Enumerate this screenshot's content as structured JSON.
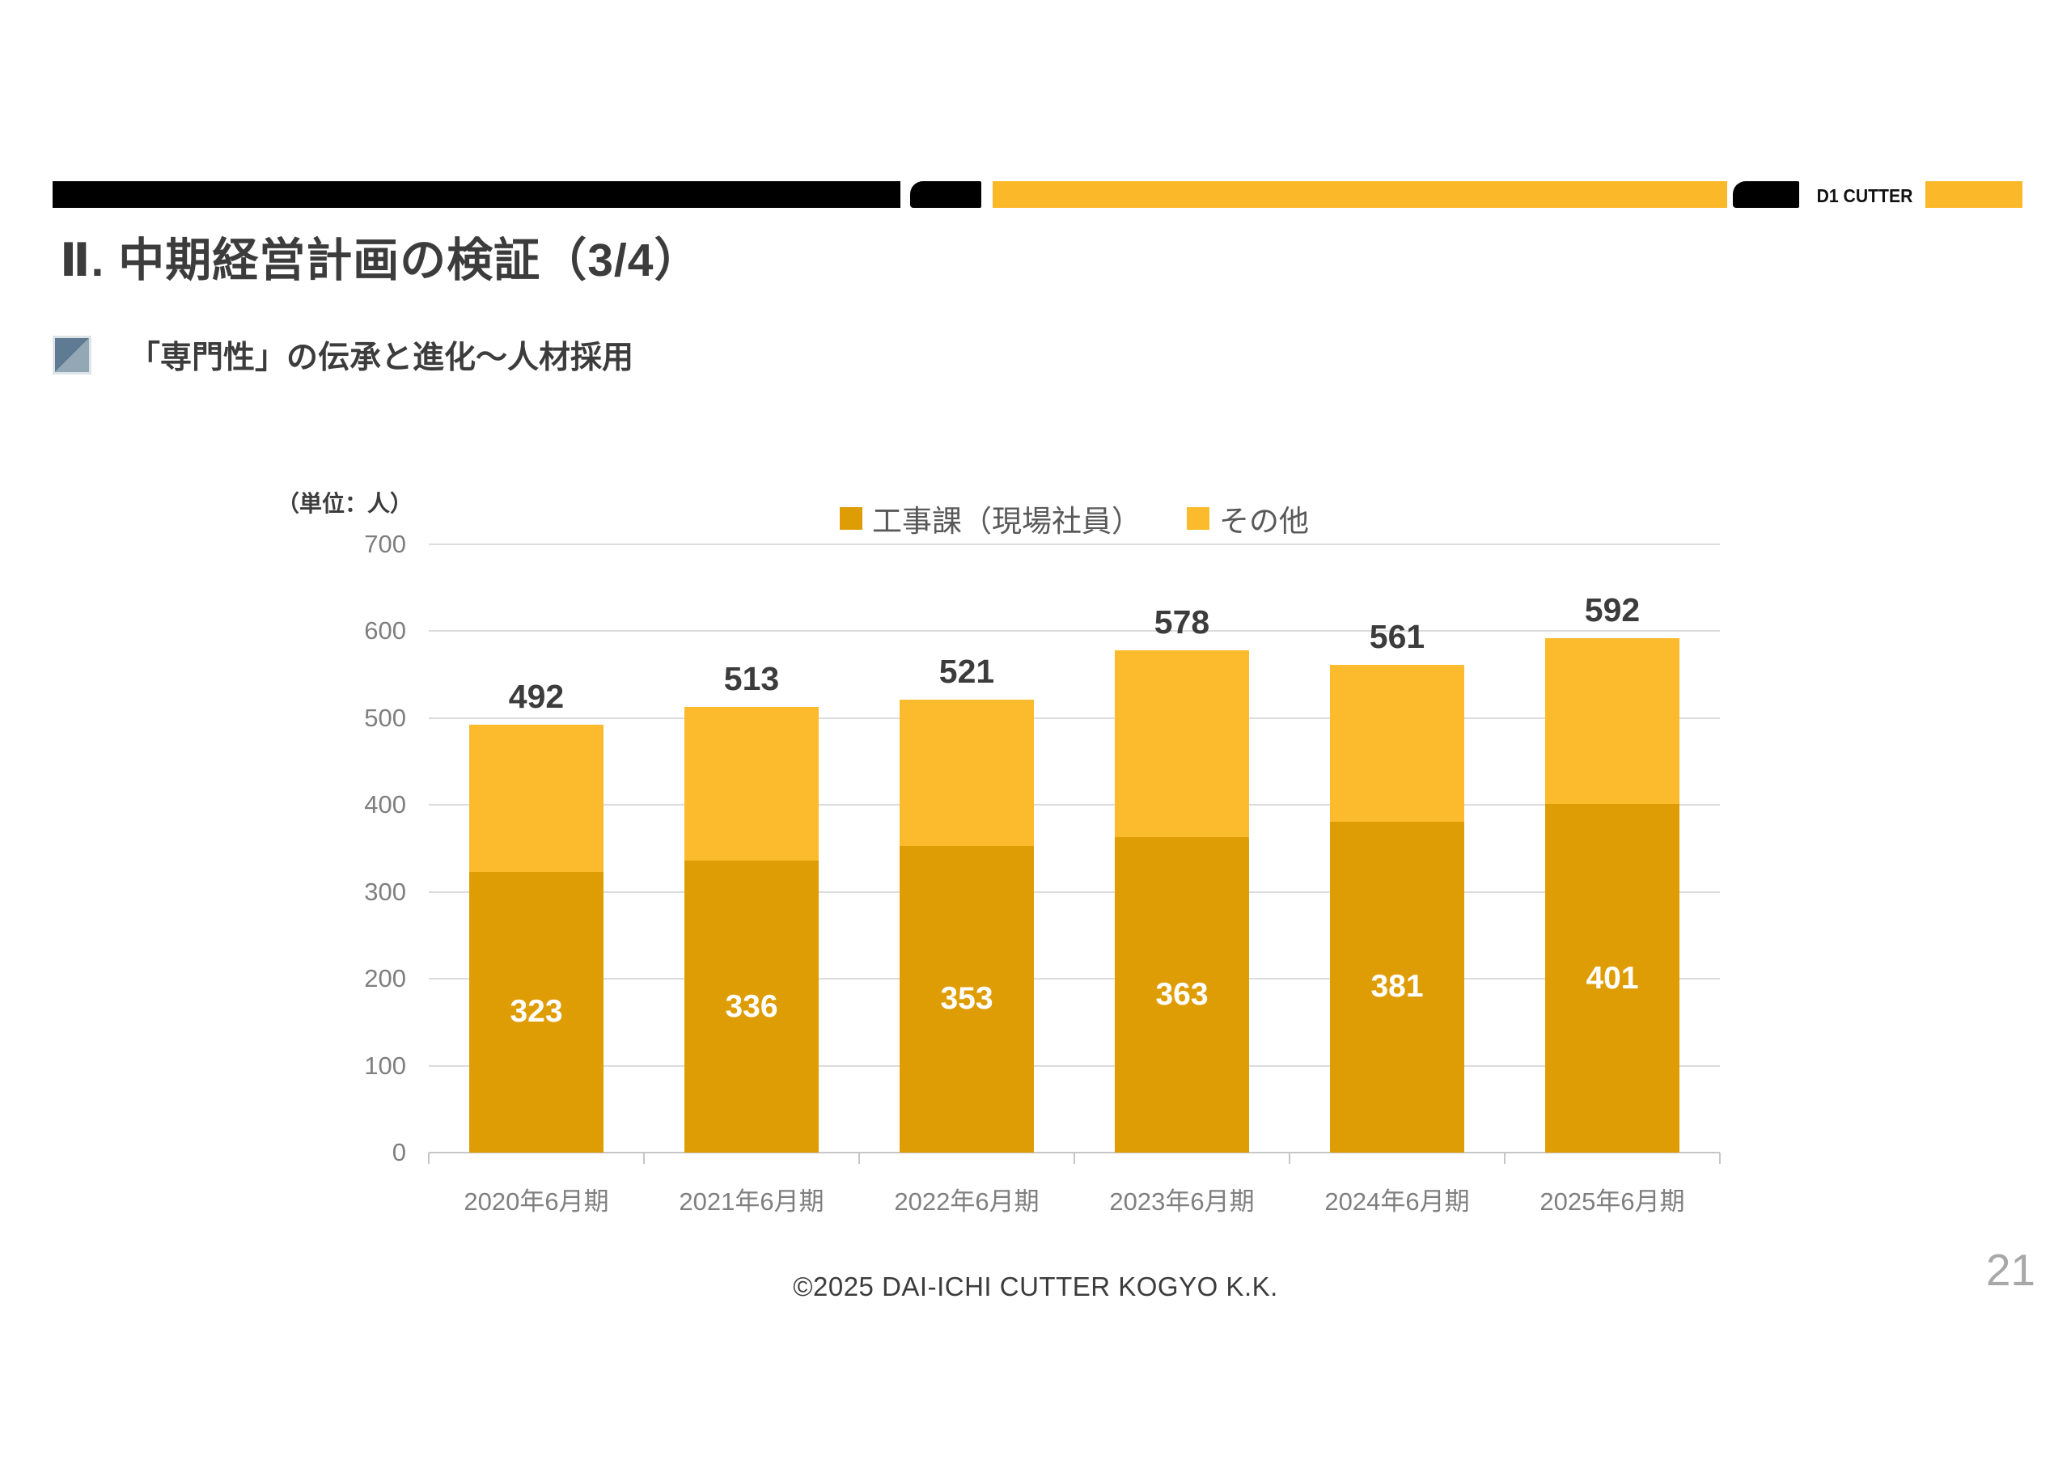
{
  "header": {
    "logo_text": "D1 CUTTER",
    "colors": {
      "black": "#000000",
      "yellow": "#FBB829"
    }
  },
  "title": "Ⅱ. 中期経営計画の検証（3/4）",
  "subtitle": "「専門性」の伝承と進化～人材採用",
  "subtitle_bullet_colors": {
    "dark": "#5E7B93",
    "light": "#93A7B5"
  },
  "chart_data": {
    "type": "bar",
    "stacked": true,
    "unit_label": "（単位：人）",
    "categories": [
      "2020年6月期",
      "2021年6月期",
      "2022年6月期",
      "2023年6月期",
      "2024年6月期",
      "2025年6月期"
    ],
    "series": [
      {
        "name": "工事課（現場社員）",
        "color": "#DF9D05",
        "values": [
          323,
          336,
          353,
          363,
          381,
          401
        ]
      },
      {
        "name": "その他",
        "color": "#FCBB2C",
        "values": [
          169,
          177,
          168,
          215,
          180,
          191
        ]
      }
    ],
    "totals": [
      492,
      513,
      521,
      578,
      561,
      592
    ],
    "ylim": [
      0,
      700
    ],
    "yticks": [
      0,
      100,
      200,
      300,
      400,
      500,
      600,
      700
    ],
    "grid": true,
    "legend_position": "top",
    "colors": {
      "grid": "#DCDCDC",
      "axis": "#C6C6C6",
      "tick_label": "#7F7F7F",
      "total_label": "#3C3C3C",
      "inner_label": "#FFFFFF",
      "legend_text": "#595959"
    }
  },
  "footer": {
    "copyright": "©2025 DAI-ICHI CUTTER KOGYO K.K.",
    "page_number": "21"
  }
}
